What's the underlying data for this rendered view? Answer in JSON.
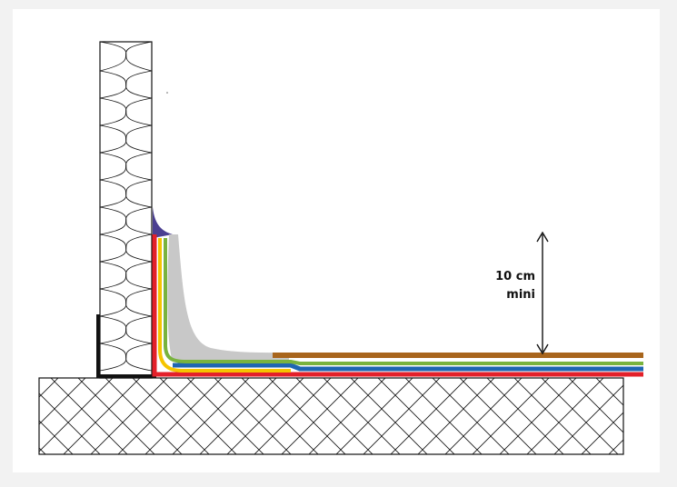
{
  "dimension": {
    "value_label": "10 cm",
    "qualifier_label": "mini"
  },
  "colors": {
    "background": "#f2f2f2",
    "canvas": "#ffffff",
    "outline": "#111111",
    "grey_fillet": "#c8c8c8",
    "purple_sealant": "#4b3f91",
    "yellow_layer": "#f5c400",
    "red_layer": "#e3202a",
    "blue_layer": "#1f66b2",
    "green_layer": "#79b33e",
    "brown_layer": "#a8651c"
  },
  "icons": [
    "double-arrow-icon"
  ]
}
